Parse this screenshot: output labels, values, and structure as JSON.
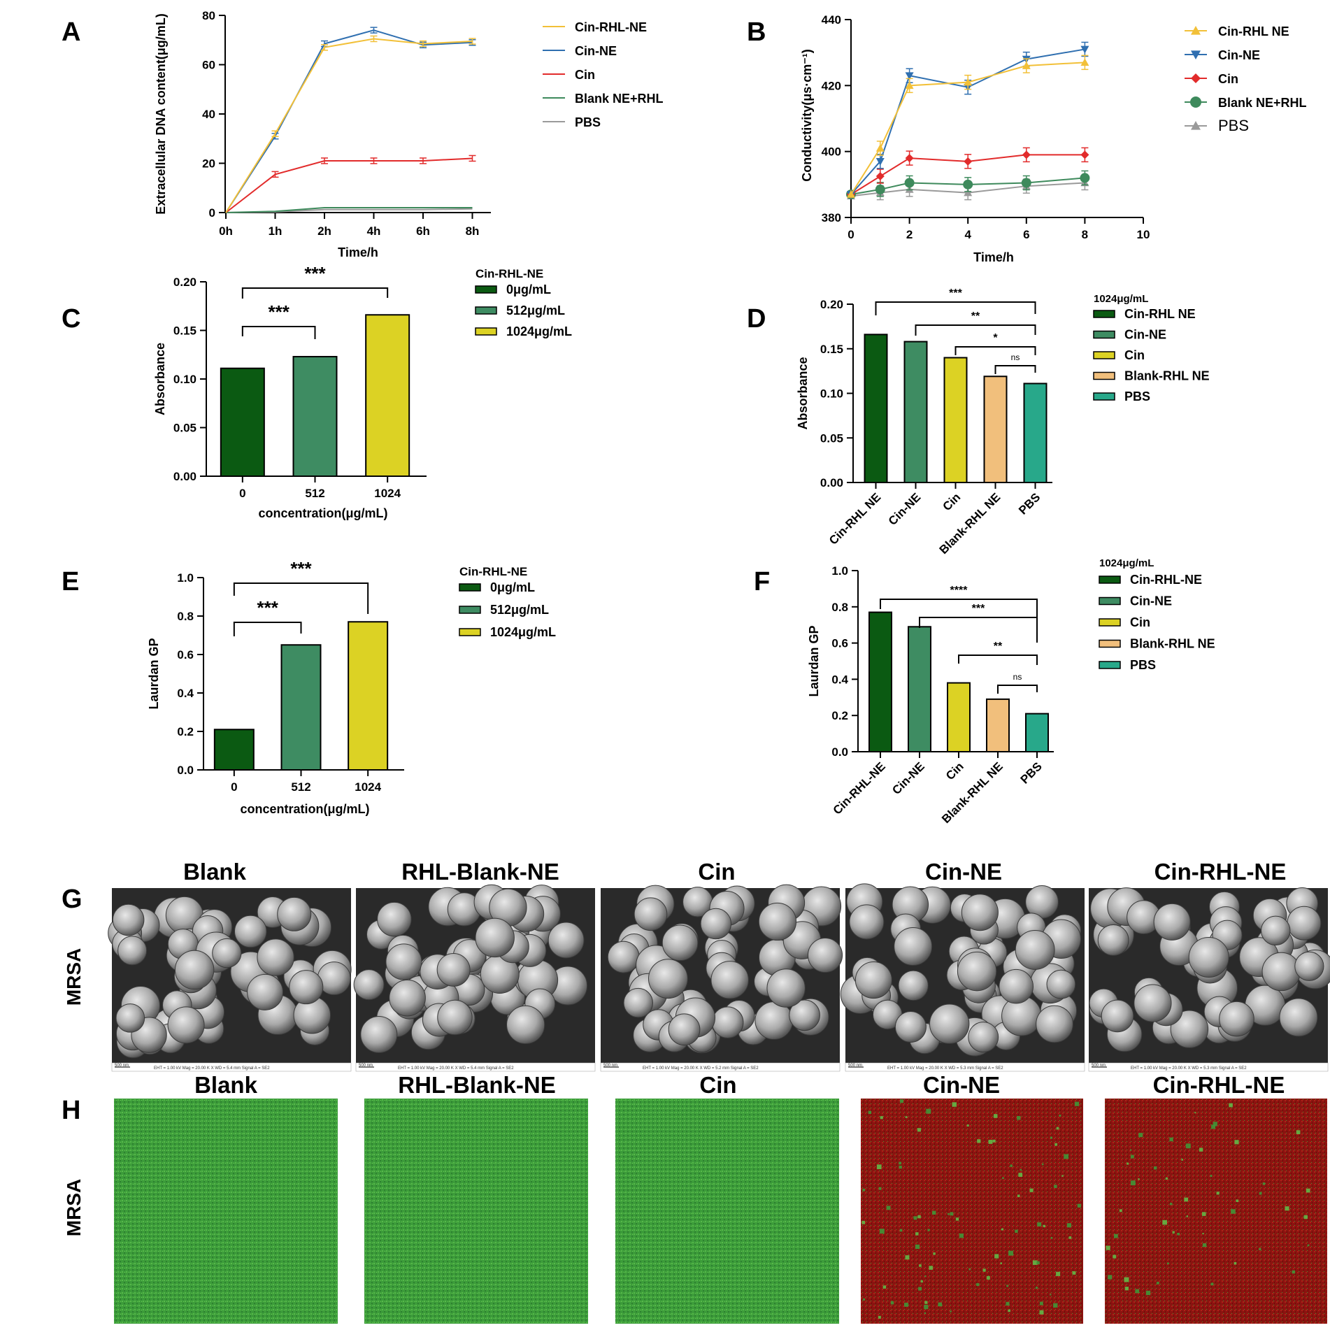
{
  "panel_labels": [
    "A",
    "B",
    "C",
    "D",
    "E",
    "F",
    "G",
    "H"
  ],
  "colors": {
    "cin_rhl_ne": "#F2C038",
    "cin_ne": "#2F6FB0",
    "cin": "#E22B2B",
    "blank_ne_rhl": "#3E8A5C",
    "pbs": "#9A9A9A",
    "bar_dark": "#0B5A12",
    "bar_mid": "#3E8C62",
    "bar_yellow": "#DCD224",
    "bar_peach": "#F1BF7C",
    "bar_teal": "#28A88A"
  },
  "chart_data": [
    {
      "id": "A",
      "type": "line",
      "xlabel": "Time/h",
      "ylabel": "Extracellular DNA content(μg/mL)",
      "categories": [
        "0h",
        "1h",
        "2h",
        "4h",
        "6h",
        "8h"
      ],
      "yticks": [
        "0",
        "20",
        "40",
        "60",
        "80"
      ],
      "ylim": [
        0,
        80
      ],
      "legend_position": "right",
      "series": [
        {
          "name": "Cin-RHL-NE",
          "color": "#F2C038",
          "values": [
            0,
            32,
            67,
            70.5,
            68.5,
            69.5
          ]
        },
        {
          "name": "Cin-NE",
          "color": "#2F6FB0",
          "values": [
            0,
            31,
            68.5,
            74,
            68,
            69
          ]
        },
        {
          "name": "Cin",
          "color": "#E22B2B",
          "values": [
            0,
            15.5,
            21,
            21,
            21,
            22
          ]
        },
        {
          "name": "Blank NE+RHL",
          "color": "#3E8A5C",
          "values": [
            0,
            0.5,
            2,
            2,
            2,
            2
          ]
        },
        {
          "name": "PBS",
          "color": "#9A9A9A",
          "values": [
            0,
            0.3,
            1.2,
            1.2,
            1.2,
            1.5
          ]
        }
      ]
    },
    {
      "id": "B",
      "type": "line",
      "xlabel": "Time/h",
      "ylabel": "Conductivity(μs·cm⁻¹)",
      "xticks": [
        "0",
        "2",
        "4",
        "6",
        "8",
        "10"
      ],
      "xlim": [
        0,
        10
      ],
      "yticks": [
        "380",
        "400",
        "420",
        "440"
      ],
      "ylim": [
        380,
        440
      ],
      "legend_position": "right",
      "x": [
        0,
        1,
        2,
        4,
        6,
        8
      ],
      "series": [
        {
          "name": "Cin-RHL NE",
          "color": "#F2C038",
          "marker": "triangle-up",
          "values": [
            387,
            401,
            420,
            421,
            426,
            427
          ]
        },
        {
          "name": "Cin-NE",
          "color": "#2F6FB0",
          "marker": "triangle-down",
          "values": [
            387,
            397,
            423,
            419.5,
            428,
            431
          ]
        },
        {
          "name": "Cin",
          "color": "#E22B2B",
          "marker": "diamond",
          "values": [
            387,
            392.5,
            398,
            397,
            399,
            399
          ]
        },
        {
          "name": "Blank NE+RHL",
          "color": "#3E8A5C",
          "marker": "circle",
          "values": [
            387,
            388.5,
            390.5,
            390,
            390.5,
            392
          ]
        },
        {
          "name": "PBS",
          "color": "#9A9A9A",
          "marker": "triangle-up",
          "values": [
            386.5,
            387.5,
            388.5,
            387.5,
            389.5,
            390.5
          ]
        }
      ]
    },
    {
      "id": "C",
      "type": "bar",
      "xlabel": "concentration(μg/mL)",
      "ylabel": "Absorbance",
      "categories": [
        "0",
        "512",
        "1024"
      ],
      "values": [
        0.111,
        0.123,
        0.166
      ],
      "colors": [
        "#0B5A12",
        "#3E8C62",
        "#DCD224"
      ],
      "yticks": [
        "0.00",
        "0.05",
        "0.10",
        "0.15",
        "0.20"
      ],
      "ylim": [
        0,
        0.2
      ],
      "legend_title": "Cin-RHL-NE",
      "legend": [
        "0μg/mL",
        "512μg/mL",
        "1024μg/mL"
      ],
      "significance": [
        {
          "from": 0,
          "to": 2,
          "label": "***"
        },
        {
          "from": 0,
          "to": 1,
          "label": "***"
        }
      ]
    },
    {
      "id": "D",
      "type": "bar",
      "xlabel": "",
      "ylabel": "Absorbance",
      "categories": [
        "Cin-RHL NE",
        "Cin-NE",
        "Cin",
        "Blank-RHL NE",
        "PBS"
      ],
      "values": [
        0.166,
        0.158,
        0.14,
        0.119,
        0.111
      ],
      "colors": [
        "#0B5A12",
        "#3E8C62",
        "#DCD224",
        "#F1BF7C",
        "#28A88A"
      ],
      "yticks": [
        "0.00",
        "0.05",
        "0.10",
        "0.15",
        "0.20"
      ],
      "ylim": [
        0,
        0.2
      ],
      "legend_title": "1024μg/mL",
      "legend": [
        "Cin-RHL NE",
        "Cin-NE",
        "Cin",
        "Blank-RHL NE",
        "PBS"
      ],
      "significance": [
        {
          "from": 0,
          "to": 4,
          "label": "***"
        },
        {
          "from": 1,
          "to": 4,
          "label": "**"
        },
        {
          "from": 2,
          "to": 4,
          "label": "*"
        },
        {
          "from": 3,
          "to": 4,
          "label": "ns"
        }
      ]
    },
    {
      "id": "E",
      "type": "bar",
      "xlabel": "concentration(μg/mL)",
      "ylabel": "Laurdan GP",
      "categories": [
        "0",
        "512",
        "1024"
      ],
      "values": [
        0.21,
        0.65,
        0.77
      ],
      "colors": [
        "#0B5A12",
        "#3E8C62",
        "#DCD224"
      ],
      "yticks": [
        "0.0",
        "0.2",
        "0.4",
        "0.6",
        "0.8",
        "1.0"
      ],
      "ylim": [
        0,
        1
      ],
      "legend_title": "Cin-RHL-NE",
      "legend": [
        "0μg/mL",
        "512μg/mL",
        "1024μg/mL"
      ],
      "significance": [
        {
          "from": 0,
          "to": 2,
          "label": "***"
        },
        {
          "from": 0,
          "to": 1,
          "label": "***"
        }
      ]
    },
    {
      "id": "F",
      "type": "bar",
      "xlabel": "",
      "ylabel": "Laurdan GP",
      "categories": [
        "Cin-RHL-NE",
        "Cin-NE",
        "Cin",
        "Blank-RHL NE",
        "PBS"
      ],
      "values": [
        0.77,
        0.69,
        0.38,
        0.29,
        0.21
      ],
      "colors": [
        "#0B5A12",
        "#3E8C62",
        "#DCD224",
        "#F1BF7C",
        "#28A88A"
      ],
      "yticks": [
        "0.0",
        "0.2",
        "0.4",
        "0.6",
        "0.8",
        "1.0"
      ],
      "ylim": [
        0,
        1
      ],
      "legend_title": "1024μg/mL",
      "legend": [
        "Cin-RHL-NE",
        "Cin-NE",
        "Cin",
        "Blank-RHL NE",
        "PBS"
      ],
      "significance": [
        {
          "from": 0,
          "to": 4,
          "label": "****"
        },
        {
          "from": 1,
          "to": 4,
          "label": "***"
        },
        {
          "from": 2,
          "to": 4,
          "label": "**"
        },
        {
          "from": 3,
          "to": 4,
          "label": "ns"
        }
      ]
    }
  ],
  "images": {
    "row_label": "MRSA",
    "sem_titles": [
      "Blank",
      "RHL-Blank-NE",
      "Cin",
      "Cin-NE",
      "Cin-RHL-NE"
    ],
    "confocal_titles": [
      "Blank",
      "RHL-Blank-NE",
      "Cin",
      "Cin-NE",
      "Cin-RHL-NE"
    ],
    "sem_scale": "500 nm",
    "sem_caption_texts": [
      "EHT = 1.00 kV   Mag = 20.00 K X   WD = 5.4 mm   Signal A = SE2",
      "EHT = 1.00 kV   Mag = 20.00 K X   WD = 5.4 mm   Signal A = SE2",
      "EHT = 1.00 kV   Mag = 20.00 K X   WD = 5.2 mm   Signal A = SE2",
      "EHT = 1.00 kV   Mag = 20.00 K X   WD = 5.3 mm   Signal A = SE2",
      "EHT = 1.00 kV   Mag = 20.00 K X   WD = 5.3 mm   Signal A = SE2"
    ],
    "confocal_red_fraction": [
      0,
      0,
      0,
      0.65,
      0.8
    ]
  }
}
